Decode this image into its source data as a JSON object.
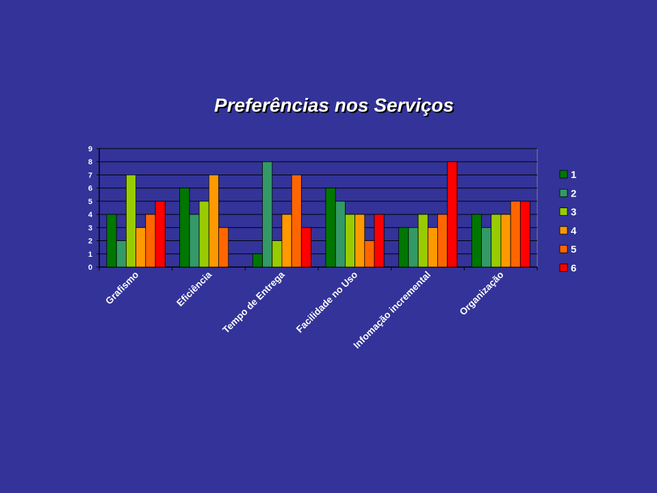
{
  "chart_data": {
    "type": "bar",
    "title": "Preferências nos Serviços",
    "categories": [
      "Grafismo",
      "Eficiência",
      "Tempo de Entrega",
      "Facilidade no Uso",
      "Infomação incremental",
      "Organização"
    ],
    "series": [
      {
        "name": "1",
        "color": "#007700",
        "values": [
          4,
          6,
          1,
          6,
          3,
          4
        ]
      },
      {
        "name": "2",
        "color": "#339966",
        "values": [
          2,
          4,
          8,
          5,
          3,
          3
        ]
      },
      {
        "name": "3",
        "color": "#99cc00",
        "values": [
          7,
          5,
          2,
          4,
          4,
          4
        ]
      },
      {
        "name": "4",
        "color": "#ff9900",
        "values": [
          3,
          7,
          4,
          4,
          3,
          4
        ]
      },
      {
        "name": "5",
        "color": "#ff6600",
        "values": [
          4,
          3,
          7,
          2,
          4,
          5
        ]
      },
      {
        "name": "6",
        "color": "#ff0000",
        "values": [
          5,
          0,
          3,
          4,
          8,
          5
        ]
      }
    ],
    "ylim": [
      0,
      9
    ],
    "yticks": [
      0,
      1,
      2,
      3,
      4,
      5,
      6,
      7,
      8,
      9
    ],
    "grid": true,
    "legend_position": "right",
    "plot_background": "#333399",
    "text_color": "#ffffff"
  }
}
